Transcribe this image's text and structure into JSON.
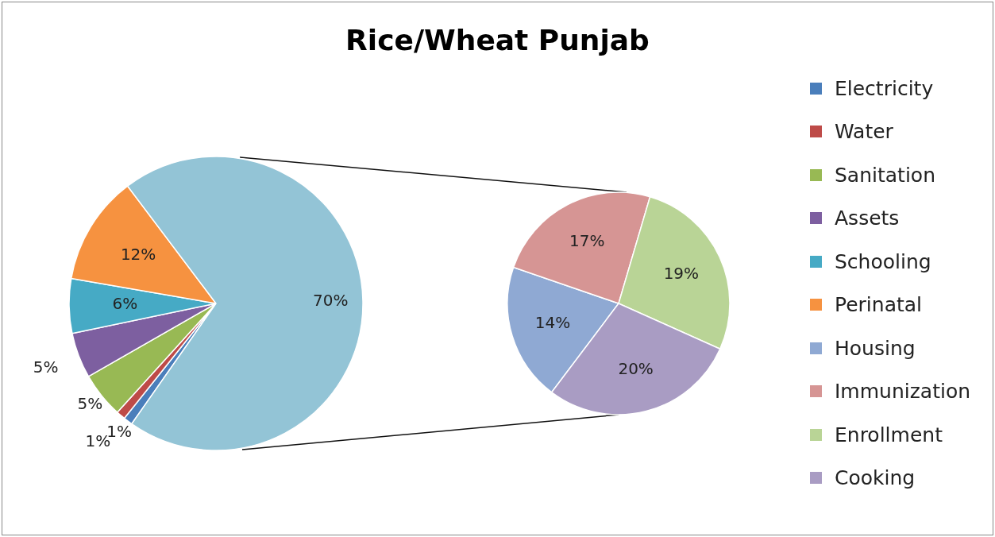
{
  "chart_data": [
    {
      "type": "pie",
      "title": "Rice/Wheat Punjab",
      "categories": [
        "Electricity",
        "Water",
        "Sanitation",
        "Assets",
        "Schooling",
        "Perinatal",
        null
      ],
      "values": [
        1,
        1,
        5,
        5,
        6,
        12,
        70
      ],
      "value_labels": [
        "1%",
        "1%",
        "5%",
        "5%",
        "6%",
        "12%",
        "70%"
      ],
      "colors": [
        "#4a7ebb",
        "#be4b48",
        "#98b954",
        "#7d5fa0",
        "#46aac5",
        "#f69240",
        "#93c4d6"
      ],
      "legend": "right"
    },
    {
      "type": "pie",
      "categories": [
        "Housing",
        "Immunization",
        "Enrollment",
        "Cooking"
      ],
      "values": [
        14,
        17,
        19,
        20
      ],
      "value_labels": [
        "14%",
        "17%",
        "19%",
        "20%"
      ],
      "colors": [
        "#8fa9d3",
        "#d69594",
        "#b9d496",
        "#a99cc3"
      ],
      "legend": "right"
    }
  ]
}
